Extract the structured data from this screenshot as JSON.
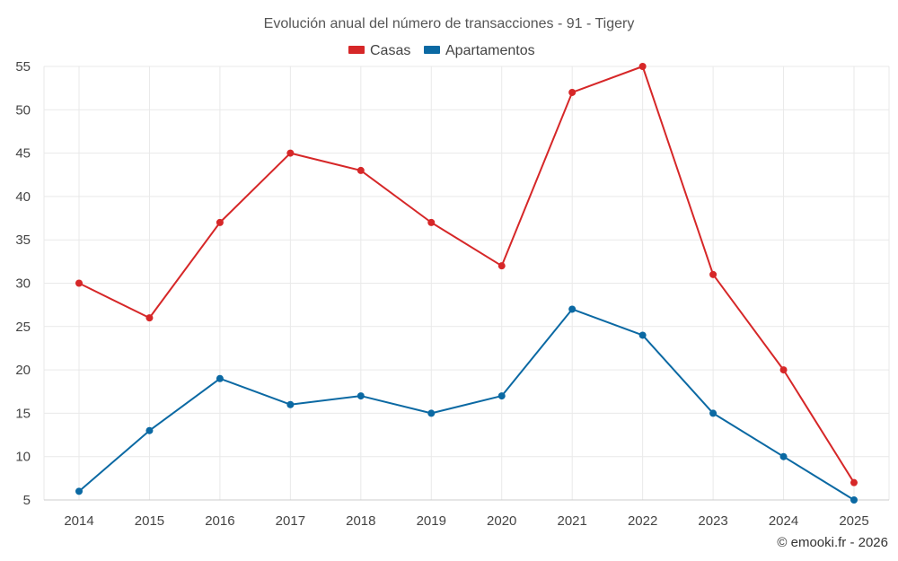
{
  "chart_data": {
    "type": "line",
    "title": "Evolución anual del número de transacciones - 91 - Tigery",
    "categories": [
      "2014",
      "2015",
      "2016",
      "2017",
      "2018",
      "2019",
      "2020",
      "2021",
      "2022",
      "2023",
      "2024",
      "2025"
    ],
    "series": [
      {
        "name": "Casas",
        "color": "#d62728",
        "values": [
          30,
          26,
          37,
          45,
          43,
          37,
          32,
          52,
          55,
          31,
          20,
          7
        ]
      },
      {
        "name": "Apartamentos",
        "color": "#0b69a3",
        "values": [
          6,
          13,
          19,
          16,
          17,
          15,
          17,
          27,
          24,
          15,
          10,
          5
        ]
      }
    ],
    "ylim": [
      5,
      55
    ],
    "yticks": [
      5,
      10,
      15,
      20,
      25,
      30,
      35,
      40,
      45,
      50,
      55
    ],
    "xlabel": "",
    "ylabel": "",
    "grid": true,
    "legend": "top-center"
  },
  "credit": "© emooki.fr - 2026"
}
